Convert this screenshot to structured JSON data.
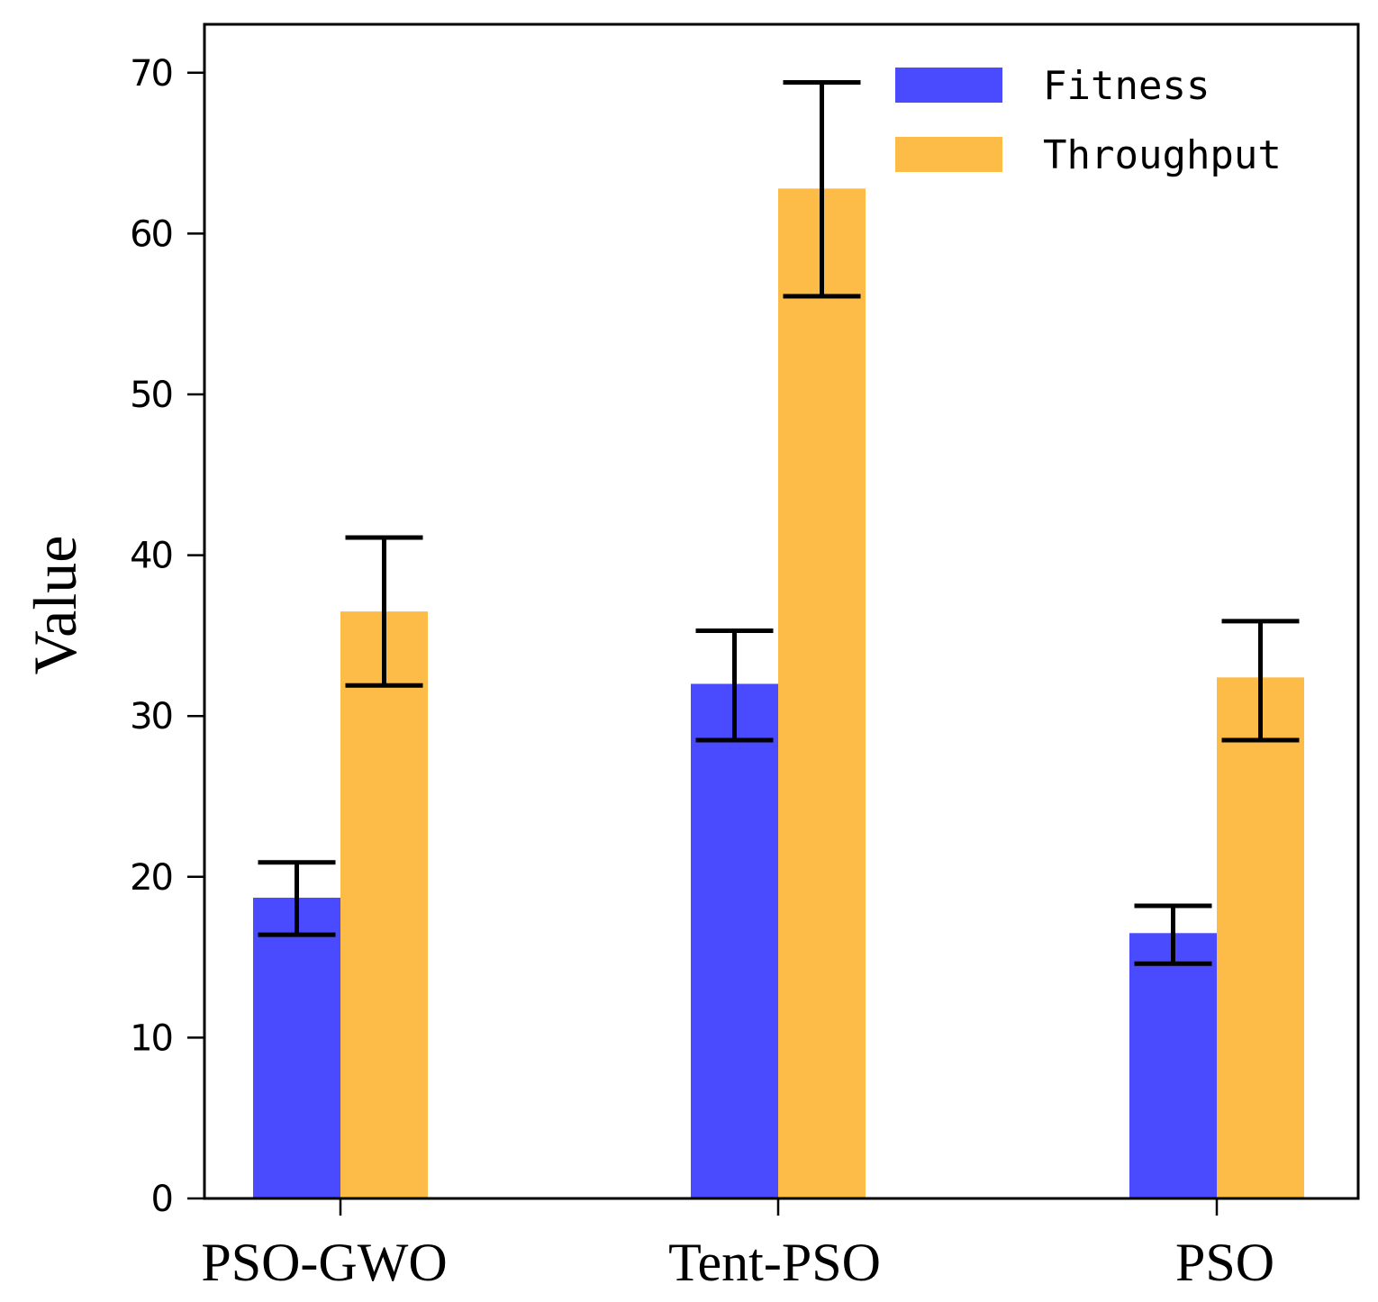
{
  "chart_data": {
    "type": "bar",
    "title": "",
    "xlabel": "",
    "ylabel": "Value",
    "ylim": [
      0,
      72
    ],
    "yticks": [
      0,
      10,
      20,
      30,
      40,
      50,
      60,
      70
    ],
    "categories": [
      "PSO-GWO",
      "Tent-PSO",
      "PSO"
    ],
    "series": [
      {
        "name": "Fitness",
        "color": "#4a4aff",
        "values": [
          18.7,
          32.0,
          16.5
        ],
        "err_low": [
          16.4,
          28.5,
          14.6
        ],
        "err_high": [
          20.9,
          35.3,
          18.2
        ]
      },
      {
        "name": "Throughput",
        "color": "#fdbb48",
        "values": [
          36.5,
          62.8,
          32.4
        ],
        "err_low": [
          31.9,
          56.1,
          28.5
        ],
        "err_high": [
          41.1,
          69.4,
          35.9
        ]
      }
    ],
    "legend": {
      "position": "top-right"
    },
    "grid": false
  }
}
